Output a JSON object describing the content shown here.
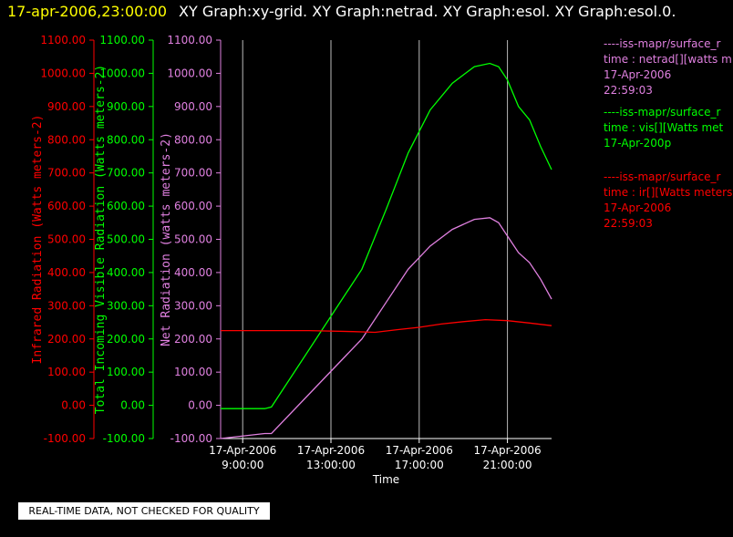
{
  "header": {
    "timestamp": "17-apr-2006,23:00:00",
    "graphs": "XY Graph:xy-grid.  XY Graph:netrad.  XY Graph:esol.  XY Graph:esol.0."
  },
  "footer": {
    "quality_note": "REAL-TIME DATA, NOT CHECKED FOR QUALITY"
  },
  "colors": {
    "infrared": "#ff0000",
    "visible": "#00ff00",
    "net": "#e080e0",
    "timestamp": "#ffff00"
  },
  "legend": [
    {
      "lines": [
        "----iss-mapr/surface_r",
        "time : netrad[][watts m",
        "17-Apr-2006",
        "22:59:03"
      ]
    },
    {
      "lines": [
        "----iss-mapr/surface_r",
        "time : vis[][Watts met",
        "17-Apr-200p"
      ]
    },
    {
      "lines": [
        "----iss-mapr/surface_r",
        "time : ir[][Watts meters",
        "17-Apr-2006",
        "22:59:03"
      ]
    }
  ],
  "chart_data": {
    "type": "line",
    "xlabel": "Time",
    "x_ticks": [
      {
        "hour": 9,
        "line1": "17-Apr-2006",
        "line2": "9:00:00"
      },
      {
        "hour": 13,
        "line1": "17-Apr-2006",
        "line2": "13:00:00"
      },
      {
        "hour": 17,
        "line1": "17-Apr-2006",
        "line2": "17:00:00"
      },
      {
        "hour": 21,
        "line1": "17-Apr-2006",
        "line2": "21:00:00"
      }
    ],
    "xlim": [
      8.0,
      23.0
    ],
    "grid": "vertical at x ticks",
    "y_axes": [
      {
        "label": "Infrared Radiation (Watts meters-2)",
        "range": [
          -100,
          1100
        ],
        "color": "#ff0000",
        "ticks": [
          "1100.00",
          "1000.00",
          "900.00",
          "800.00",
          "700.00",
          "600.00",
          "500.00",
          "400.00",
          "300.00",
          "200.00",
          "100.00",
          "0.00",
          "-100.00"
        ]
      },
      {
        "label": "Total Incoming Visible Radiation (Watts meters-2)",
        "range": [
          -100,
          1100
        ],
        "color": "#00ff00",
        "ticks": [
          "1100.00",
          "1000.00",
          "900.00",
          "800.00",
          "700.00",
          "600.00",
          "500.00",
          "400.00",
          "300.00",
          "200.00",
          "100.00",
          "0.00",
          "-100.00"
        ]
      },
      {
        "label": "Net Radiation (watts meters-2)",
        "range": [
          -100,
          1100
        ],
        "color": "#e080e0",
        "ticks": [
          "1100.00",
          "1000.00",
          "900.00",
          "800.00",
          "700.00",
          "600.00",
          "500.00",
          "400.00",
          "300.00",
          "200.00",
          "100.00",
          "0.00",
          "-100.00"
        ]
      }
    ],
    "series": [
      {
        "color": "#00ff00",
        "x": [
          8.0,
          10.0,
          10.3,
          14.4,
          15.5,
          16.5,
          17.5,
          18.5,
          19.5,
          20.2,
          20.6,
          21.0,
          21.5,
          22.0,
          22.5,
          23.0
        ],
        "values": [
          -10,
          -10,
          -5,
          410,
          590,
          760,
          890,
          970,
          1020,
          1030,
          1020,
          980,
          900,
          860,
          780,
          710
        ]
      },
      {
        "color": "#e080e0",
        "x": [
          8.0,
          10.0,
          10.3,
          14.4,
          15.5,
          16.5,
          17.5,
          18.5,
          19.5,
          20.2,
          20.6,
          21.0,
          21.5,
          22.0,
          22.5,
          23.0
        ],
        "values": [
          -100,
          -85,
          -85,
          200,
          310,
          410,
          480,
          530,
          560,
          565,
          550,
          510,
          460,
          430,
          380,
          320
        ]
      },
      {
        "color": "#ff0000",
        "x": [
          8.0,
          10.0,
          12.0,
          14.0,
          15.0,
          16.0,
          17.0,
          18.0,
          19.0,
          20.0,
          21.0,
          22.0,
          23.0
        ],
        "values": [
          225,
          225,
          225,
          222,
          220,
          228,
          235,
          245,
          252,
          258,
          255,
          248,
          240
        ]
      }
    ]
  }
}
